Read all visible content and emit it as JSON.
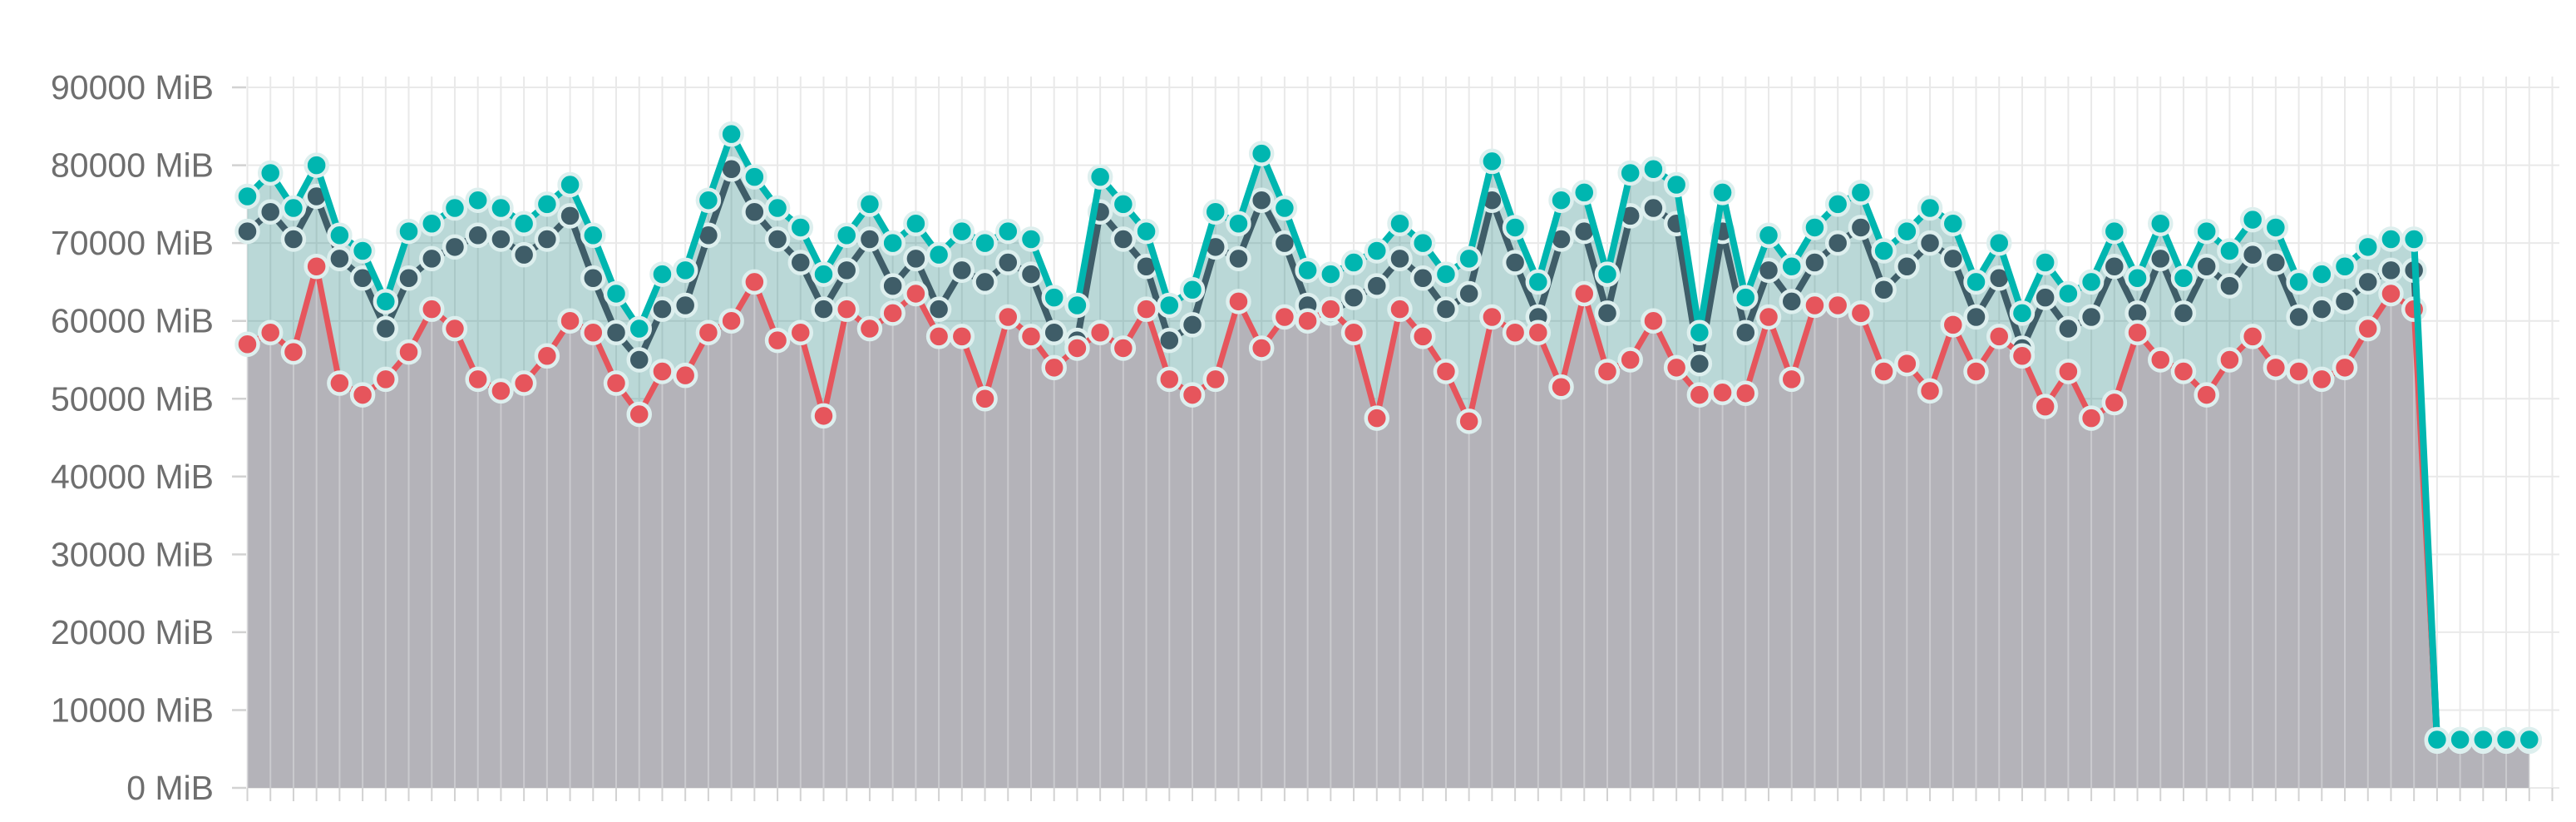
{
  "chart_data": {
    "type": "line",
    "title": "",
    "unit": "MiB",
    "legend": "none",
    "grid": true,
    "point_style": "filled-circle-with-light-halo",
    "y_axis": {
      "min": 0,
      "max": 90000,
      "tick_step": 10000,
      "tick_labels": [
        "0 MiB",
        "10000 MiB",
        "20000 MiB",
        "30000 MiB",
        "40000 MiB",
        "50000 MiB",
        "60000 MiB",
        "70000 MiB",
        "80000 MiB",
        "90000 MiB"
      ]
    },
    "x_axis": {
      "labels_visible": false,
      "point_count": 100
    },
    "series": [
      {
        "name": "teal-series",
        "color": "#00b6b0",
        "area_fill": "rgba(25,125,123,0.30)",
        "has_area": true,
        "values": [
          76000,
          79000,
          74500,
          80000,
          71000,
          69000,
          62500,
          71500,
          72500,
          74500,
          75500,
          74500,
          72500,
          75000,
          77500,
          71000,
          63500,
          59000,
          66000,
          66500,
          75500,
          84000,
          78500,
          74500,
          72000,
          66000,
          71000,
          75000,
          70000,
          72500,
          68500,
          71500,
          70000,
          71500,
          70500,
          63000,
          62000,
          78500,
          75000,
          71500,
          62000,
          64000,
          74000,
          72500,
          81500,
          74500,
          66500,
          66000,
          67500,
          69000,
          72500,
          70000,
          66000,
          68000,
          80500,
          72000,
          65000,
          75500,
          76500,
          66000,
          79000,
          79500,
          77500,
          58500,
          76500,
          63000,
          71000,
          67000,
          72000,
          75000,
          76500,
          69000,
          71500,
          74500,
          72500,
          65000,
          70000,
          61000,
          67500,
          63500,
          65000,
          71500,
          65500,
          72500,
          65500,
          71500,
          69000,
          73000,
          72000,
          65000,
          66000,
          67000,
          69500,
          70500,
          70500,
          6200,
          6200,
          6200,
          6200,
          6200
        ]
      },
      {
        "name": "slate-series",
        "color": "#3f5d68",
        "area_fill": null,
        "has_area": false,
        "values": [
          71500,
          74000,
          70500,
          76000,
          68000,
          65500,
          59000,
          65500,
          68000,
          69500,
          71000,
          70500,
          68500,
          70500,
          73500,
          65500,
          58500,
          55000,
          61500,
          62000,
          71000,
          79500,
          74000,
          70500,
          67500,
          61500,
          66500,
          70500,
          64500,
          68000,
          61500,
          66500,
          65000,
          67500,
          66000,
          58500,
          57500,
          74000,
          70500,
          67000,
          57500,
          59500,
          69500,
          68000,
          75500,
          70000,
          62000,
          61000,
          63000,
          64500,
          68000,
          65500,
          61500,
          63500,
          75500,
          67500,
          60500,
          70500,
          71500,
          61000,
          73500,
          74500,
          72500,
          54500,
          71500,
          58500,
          66500,
          62500,
          67500,
          70000,
          72000,
          64000,
          67000,
          70000,
          68000,
          60500,
          65500,
          56500,
          63000,
          59000,
          60500,
          67000,
          61000,
          68000,
          61000,
          67000,
          64500,
          68500,
          67500,
          60500,
          61500,
          62500,
          65000,
          66500,
          66500,
          6200,
          6200,
          6200,
          6200,
          6200
        ]
      },
      {
        "name": "red-series",
        "color": "#e6555c",
        "area_fill": "#b4b3b9",
        "has_area": true,
        "values": [
          57000,
          58500,
          56000,
          67000,
          52000,
          50500,
          52500,
          56000,
          61500,
          59000,
          52500,
          51000,
          52000,
          55500,
          60000,
          58500,
          52000,
          48000,
          53500,
          53000,
          58500,
          60000,
          65000,
          57500,
          58500,
          47800,
          61500,
          59000,
          61000,
          63500,
          58000,
          58000,
          50000,
          60500,
          58000,
          54000,
          56500,
          58500,
          56500,
          61500,
          52500,
          50500,
          52500,
          62500,
          56500,
          60500,
          60000,
          61500,
          58500,
          47500,
          61500,
          58000,
          53500,
          47100,
          60500,
          58500,
          58500,
          51500,
          63500,
          53500,
          55000,
          60000,
          54000,
          50500,
          50800,
          50700,
          60500,
          52500,
          62000,
          62000,
          61000,
          53500,
          54500,
          51000,
          59500,
          53500,
          58000,
          55500,
          49000,
          53500,
          47500,
          49500,
          58500,
          55000,
          53500,
          50500,
          55000,
          58000,
          54000,
          53500,
          52500,
          54000,
          59000,
          63500,
          61500,
          6000,
          6000,
          6000,
          6000,
          6000
        ]
      }
    ]
  },
  "colors": {
    "background": "#ffffff",
    "gridline": "#e9e9e9",
    "grid_overlay_on_gray": "rgba(255,255,255,0.30)",
    "axis_tick": "#d2d2d2",
    "axis_label_text": "#6e6e6e",
    "point_halo": "#ddefee"
  }
}
